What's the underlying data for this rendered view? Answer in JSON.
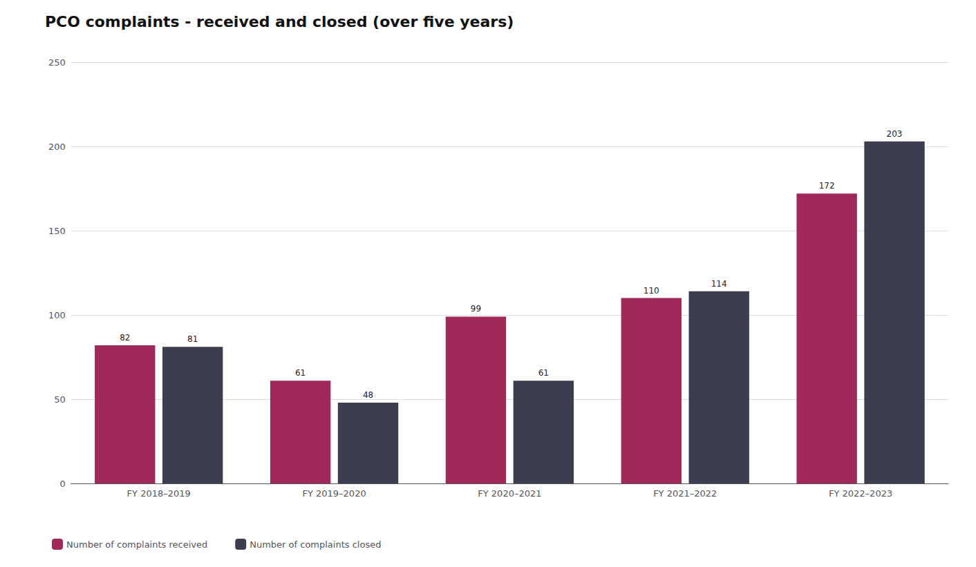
{
  "chart_data": {
    "type": "bar",
    "title": "PCO complaints - received and closed (over five years)",
    "categories": [
      "FY 2018–2019",
      "FY 2019–2020",
      "FY 2020–2021",
      "FY 2021–2022",
      "FY 2022–2023"
    ],
    "series": [
      {
        "name": "Number of complaints received",
        "color": "#A0295A",
        "values": [
          82,
          61,
          99,
          110,
          172
        ]
      },
      {
        "name": "Number of complaints closed",
        "color": "#3D3D50",
        "values": [
          81,
          48,
          61,
          114,
          203
        ]
      }
    ],
    "ylim": [
      0,
      250
    ],
    "yticks": [
      0,
      50,
      100,
      150,
      200,
      250
    ],
    "grid": true,
    "legend": "lower left",
    "data_labels": true
  }
}
